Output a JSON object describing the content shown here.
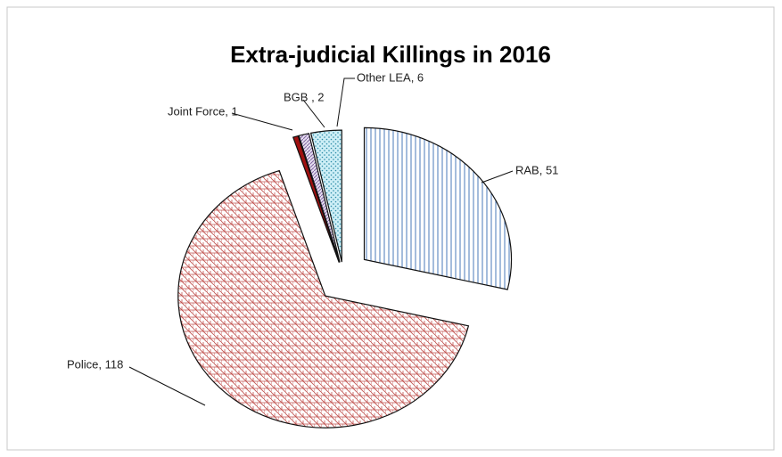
{
  "chart_data": {
    "type": "pie",
    "title": "Extra-judicial Killings in 2016",
    "categories": [
      "RAB",
      "Police",
      "Joint Force",
      "BGB",
      "Other LEA"
    ],
    "values": [
      51,
      118,
      1,
      2,
      6
    ],
    "value_labels": [
      "RAB, 51",
      "Police, 118",
      "Joint Force, 1",
      "BGB , 2",
      "Other LEA, 6"
    ],
    "colors": [
      "#4a78b8",
      "#c0504d",
      "#a01010",
      "#8064a2",
      "#4bacc6"
    ]
  }
}
